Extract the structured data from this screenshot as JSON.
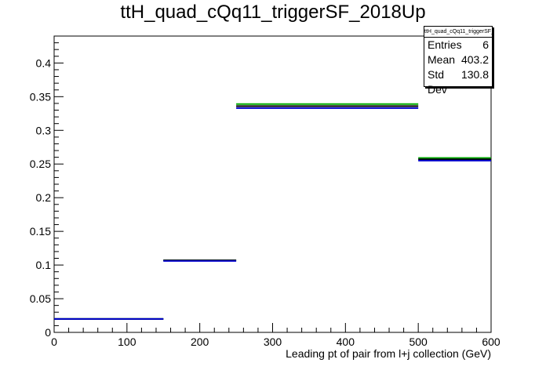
{
  "title": "ttH_quad_cQq11_triggerSF_2018Up",
  "stats": {
    "name": "ttH_quad_cQq11_triggerSF_2018Up",
    "rows": [
      {
        "label": "Entries",
        "value": "6"
      },
      {
        "label": "Mean",
        "value": "403.2"
      },
      {
        "label": "Std Dev",
        "value": "130.8"
      }
    ]
  },
  "chart_data": {
    "type": "step",
    "title": "ttH_quad_cQq11_triggerSF_2018Up",
    "xlabel": "Leading pt of pair from l+j collection (GeV)",
    "ylabel": "",
    "xlim": [
      0,
      600
    ],
    "ylim": [
      0,
      0.44
    ],
    "x_ticks": [
      0,
      100,
      200,
      300,
      400,
      500,
      600
    ],
    "y_ticks": [
      0,
      0.05,
      0.1,
      0.15,
      0.2,
      0.25,
      0.3,
      0.35,
      0.4
    ],
    "x_tick_labels": [
      "0",
      "100",
      "200",
      "300",
      "400",
      "500",
      "600"
    ],
    "y_tick_labels": [
      "0",
      "0.05",
      "0.1",
      "0.15",
      "0.2",
      "0.25",
      "0.3",
      "0.35",
      "0.4"
    ],
    "bin_edges": [
      0,
      150,
      250,
      500,
      600
    ],
    "series": [
      {
        "color": "#00aa00",
        "values": [
          0.02,
          0.107,
          0.339,
          0.259
        ]
      },
      {
        "color": "#000000",
        "values": [
          0.02,
          0.107,
          0.336,
          0.257
        ]
      },
      {
        "color": "#0000cc",
        "values": [
          0.02,
          0.106,
          0.333,
          0.255
        ]
      }
    ],
    "grid": false,
    "legend": "none"
  }
}
